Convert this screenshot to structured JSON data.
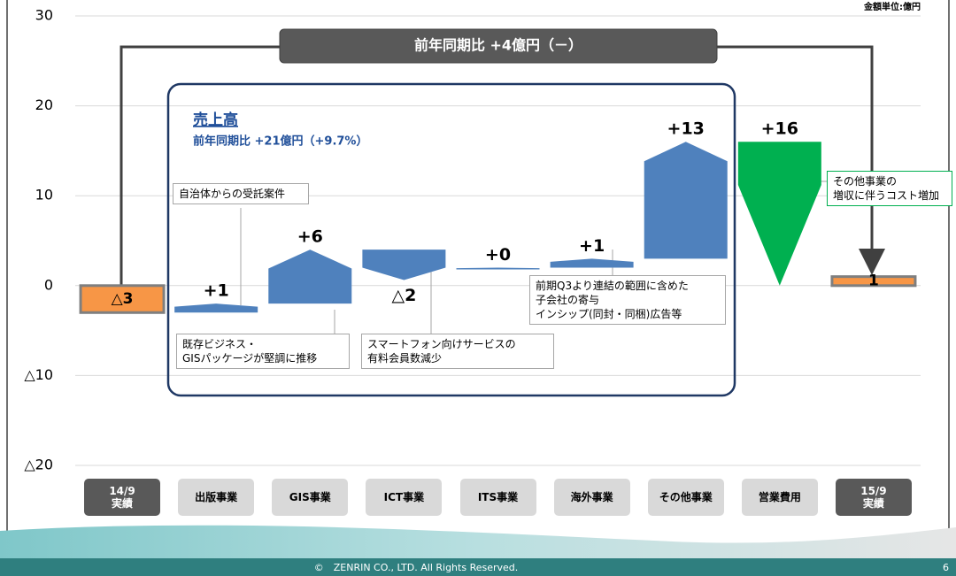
{
  "chart_data": {
    "type": "waterfall",
    "unit_note": "金額単位:億円",
    "title": "前年同期比 +4億円（－）",
    "box_title": "売上高",
    "box_subtitle": "前年同期比 +21億円（+9.7%）",
    "categories": [
      "14/9\n実績",
      "出版事業",
      "GIS事業",
      "ICT事業",
      "ITS事業",
      "海外事業",
      "その他事業",
      "営業費用",
      "15/9\n実績"
    ],
    "measures": [
      "total",
      "increase",
      "increase",
      "decrease",
      "increase",
      "increase",
      "increase",
      "cost",
      "total"
    ],
    "values": [
      -3,
      1,
      6,
      -2,
      0,
      1,
      13,
      16,
      1
    ],
    "value_labels": [
      "△3",
      "+1",
      "+6",
      "△2",
      "+0",
      "+1",
      "+13",
      "+16",
      "1"
    ],
    "colors": {
      "total": "#f79646",
      "increase": "#4f81bd",
      "decrease": "#4f81bd",
      "cost": "#00b050"
    },
    "ylim": [
      -20,
      30
    ],
    "yticks": [
      {
        "value": -20,
        "label": "△20"
      },
      {
        "value": -10,
        "label": "△10"
      },
      0,
      10,
      20,
      30
    ],
    "grid": true,
    "annotations": [
      "自治体からの受託案件",
      "既存ビジネス・\nGISパッケージが堅調に推移",
      "スマートフォン向けサービスの\n有料会員数減少",
      "前期Q3より連結の範囲に含めた\n子会社の寄与\nインシップ(同封・同梱)広告等",
      "その他事業の\n増収に伴うコスト増加"
    ]
  },
  "footer": {
    "copyright": "©　ZENRIN CO., LTD. All Rights Reserved.",
    "page": "6"
  }
}
